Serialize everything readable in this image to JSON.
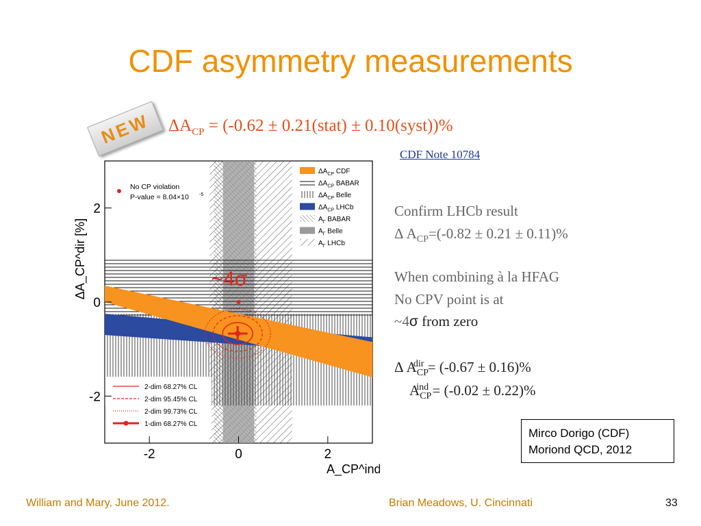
{
  "slide": {
    "title": "CDF asymmetry measurements",
    "badge": "NEW",
    "headline": {
      "lhs": "ΔA",
      "lhs_sub": "CP",
      "rhs": " = (-0.62 ± 0.21(stat) ± 0.10(syst))%"
    },
    "note_link": "CDF Note 10784",
    "side_text": {
      "line1": "Confirm LHCb result",
      "line2_pre": "Δ A",
      "line2_sub": "CP",
      "line2_post": "=(-0.82 ± 0.21 ± 0.11)%",
      "line3": "When combining à la HFAG",
      "line4": "No CPV point is at",
      "line5_pre": "~4",
      "line5_sigma": "σ",
      "line5_post": " from zero",
      "result1_pre": "Δ A",
      "result1_sub": "CP",
      "result1_sup": "dir",
      "result1_post": " = (-0.67 ± 0.16)%",
      "result2_pre": "A",
      "result2_sub": "CP",
      "result2_sup": "ind",
      "result2_post": " = (-0.02 ± 0.22)%"
    },
    "credits": {
      "line1": "Mirco Dorigo (CDF)",
      "line2": "Moriond QCD, 2012"
    },
    "footer_left": "William and Mary, June 2012.",
    "footer_center": "Brian Meadows, U. Cincinnati",
    "page_number": "33"
  },
  "chart_data": {
    "type": "scatter",
    "title": "",
    "xlabel": "A_CP^ind [%]",
    "ylabel": "ΔA_CP^dir [%]",
    "xlim": [
      -3,
      3
    ],
    "ylim": [
      -3,
      3
    ],
    "xticks": [
      "-2",
      "0",
      "2"
    ],
    "yticks": [
      "2",
      "0",
      "-2"
    ],
    "no_cpv_point": {
      "x": 0.0,
      "y": 0.0
    },
    "best_fit": {
      "x": -0.02,
      "y": -0.67,
      "xerr": 0.22,
      "yerr": 0.16
    },
    "sigma_annotation": "~4σ",
    "legend_top": {
      "marker_label_1": "No CP violation",
      "marker_label_2": "P-value = 8.04×10",
      "marker_label_exp": "-5"
    },
    "legend_right": [
      {
        "pre": "ΔA",
        "sub": "CP",
        "post": " CDF",
        "style": "orange"
      },
      {
        "pre": "ΔA",
        "sub": "CP",
        "post": " BABAR",
        "style": "hlines"
      },
      {
        "pre": "ΔA",
        "sub": "CP",
        "post": " Belle",
        "style": "vlines"
      },
      {
        "pre": "ΔA",
        "sub": "CP",
        "post": " LHCb",
        "style": "blue"
      },
      {
        "pre": "A",
        "sub": "Γ",
        "post": " BABAR",
        "style": "diag-dense"
      },
      {
        "pre": "A",
        "sub": "Γ",
        "post": " Belle",
        "style": "grey"
      },
      {
        "pre": "A",
        "sub": "Γ",
        "post": " LHCb",
        "style": "diag"
      }
    ],
    "legend_bottom": [
      {
        "label": "2-dim 68.27% CL",
        "style": "solid"
      },
      {
        "label": "2-dim 95.45% CL",
        "style": "dashed"
      },
      {
        "label": "2-dim 99.73% CL",
        "style": "dotted"
      },
      {
        "label": "1-dim 68.27% CL",
        "style": "thick-point"
      }
    ],
    "colors": {
      "cdf": "#f7931e",
      "lhcb": "#2b4aa0",
      "contour": "#e0261b"
    }
  }
}
